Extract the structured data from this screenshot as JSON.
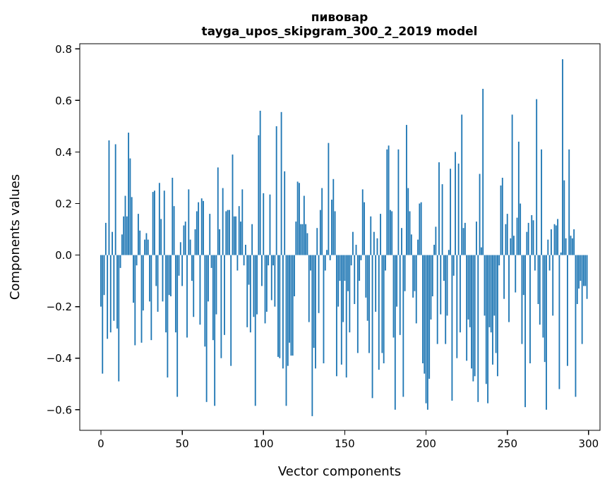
{
  "figure": {
    "title_line1": "пивовар",
    "title_line2": "tayga_upos_skipgram_300_2_2019 model",
    "xlabel": "Vector components",
    "ylabel": "Components values",
    "bar_color": "#1f77b4",
    "axis_color": "#000000",
    "background_color": "#ffffff"
  },
  "chart_data": {
    "type": "bar",
    "title": "пивовар",
    "subtitle": "tayga_upos_skipgram_300_2_2019 model",
    "xlabel": "Vector components",
    "ylabel": "Components values",
    "legend": null,
    "grid": false,
    "bar_color": "#1f77b4",
    "n_components": 300,
    "x_start": 0,
    "xlim": [
      -13,
      307
    ],
    "ylim": [
      -0.68,
      0.82
    ],
    "xticks": [
      0,
      50,
      100,
      150,
      200,
      250,
      300
    ],
    "yticks": [
      -0.6,
      -0.4,
      -0.2,
      0.0,
      0.2,
      0.4,
      0.6,
      0.8
    ],
    "values": [
      -0.2,
      -0.46,
      -0.155,
      0.125,
      -0.325,
      0.445,
      -0.3,
      0.09,
      -0.255,
      0.43,
      -0.285,
      -0.49,
      -0.05,
      0.08,
      0.15,
      0.23,
      0.15,
      0.475,
      0.375,
      0.225,
      -0.185,
      -0.35,
      -0.04,
      0.16,
      0.095,
      -0.34,
      -0.215,
      0.06,
      0.085,
      0.06,
      -0.18,
      -0.33,
      0.245,
      0.25,
      -0.12,
      -0.22,
      0.28,
      0.14,
      -0.18,
      0.25,
      -0.3,
      -0.475,
      -0.155,
      -0.16,
      0.3,
      0.19,
      -0.3,
      -0.55,
      -0.08,
      0.05,
      -0.12,
      0.115,
      0.13,
      -0.32,
      0.255,
      0.06,
      -0.1,
      -0.24,
      0.1,
      0.17,
      0.205,
      -0.27,
      0.22,
      0.21,
      -0.355,
      -0.57,
      -0.18,
      0.16,
      -0.05,
      -0.33,
      -0.585,
      -0.23,
      0.34,
      0.1,
      -0.4,
      0.26,
      -0.31,
      0.17,
      0.175,
      0.175,
      -0.43,
      0.39,
      0.15,
      0.15,
      -0.06,
      0.19,
      0.13,
      0.255,
      -0.04,
      0.04,
      -0.28,
      -0.115,
      -0.3,
      0.12,
      -0.24,
      -0.585,
      -0.23,
      0.465,
      0.56,
      -0.12,
      0.24,
      -0.265,
      -0.22,
      -0.04,
      0.235,
      -0.175,
      -0.04,
      -0.2,
      0.5,
      -0.395,
      -0.4,
      0.555,
      -0.44,
      0.325,
      -0.585,
      -0.43,
      -0.34,
      -0.39,
      -0.39,
      -0.16,
      0.13,
      0.285,
      0.28,
      0.12,
      0.12,
      0.23,
      0.12,
      0.085,
      -0.26,
      -0.06,
      -0.625,
      -0.36,
      -0.44,
      0.105,
      -0.225,
      0.175,
      0.26,
      -0.42,
      -0.06,
      0.02,
      0.435,
      -0.02,
      0.215,
      0.295,
      0.17,
      -0.47,
      -0.2,
      -0.1,
      -0.425,
      -0.26,
      -0.1,
      -0.475,
      -0.14,
      -0.3,
      -0.04,
      0.09,
      -0.19,
      0.04,
      -0.38,
      -0.1,
      -0.02,
      0.255,
      0.205,
      -0.165,
      -0.255,
      -0.38,
      0.15,
      -0.555,
      0.09,
      -0.22,
      0.065,
      -0.445,
      0.16,
      -0.38,
      -0.42,
      -0.06,
      0.41,
      0.425,
      0.175,
      0.17,
      -0.32,
      -0.6,
      -0.2,
      0.41,
      -0.31,
      0.105,
      -0.55,
      -0.14,
      0.505,
      0.26,
      0.17,
      0.08,
      -0.165,
      -0.14,
      -0.265,
      0.06,
      0.2,
      0.205,
      -0.42,
      -0.46,
      -0.575,
      -0.6,
      -0.48,
      -0.25,
      -0.16,
      0.04,
      0.11,
      -0.345,
      0.36,
      -0.23,
      0.275,
      -0.1,
      -0.345,
      -0.235,
      0.02,
      0.335,
      -0.565,
      -0.08,
      0.4,
      -0.4,
      0.355,
      -0.3,
      0.545,
      0.105,
      0.125,
      -0.41,
      -0.25,
      -0.28,
      -0.44,
      -0.49,
      -0.47,
      0.13,
      -0.57,
      0.315,
      0.03,
      0.645,
      -0.235,
      -0.5,
      -0.575,
      -0.28,
      -0.3,
      -0.425,
      -0.235,
      -0.38,
      -0.47,
      -0.04,
      0.27,
      0.3,
      -0.17,
      0.12,
      0.16,
      -0.26,
      0.065,
      0.545,
      0.075,
      -0.145,
      0.145,
      0.44,
      0.2,
      -0.345,
      -0.155,
      -0.59,
      0.09,
      0.125,
      -0.42,
      0.155,
      0.135,
      -0.06,
      0.605,
      -0.19,
      -0.27,
      0.41,
      -0.32,
      -0.415,
      -0.6,
      0.06,
      -0.06,
      0.1,
      -0.235,
      0.12,
      0.115,
      0.14,
      -0.52,
      0.01,
      0.76,
      0.29,
      0.065,
      -0.43,
      0.41,
      0.075,
      0.065,
      0.1,
      -0.55,
      -0.19,
      -0.13,
      -0.1,
      -0.345,
      -0.12,
      -0.12,
      -0.17
    ]
  }
}
